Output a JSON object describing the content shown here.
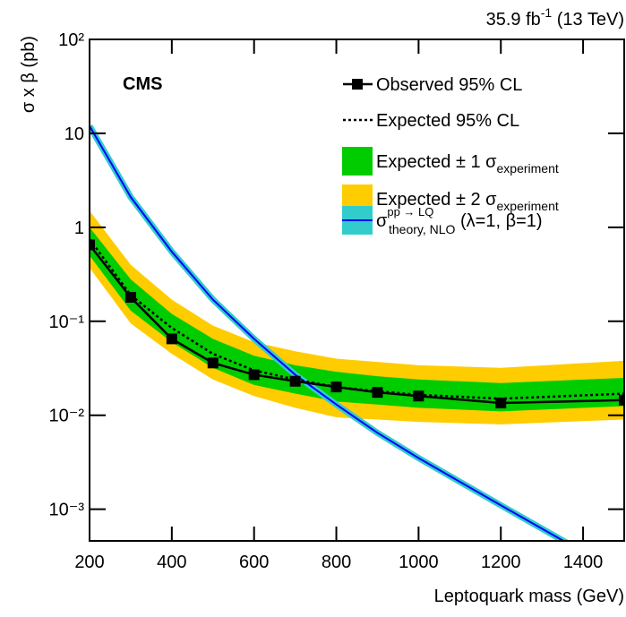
{
  "chart_data": {
    "type": "line",
    "experiment": "CMS",
    "lumi": {
      "text": "35.9 fb",
      "sup": "-1",
      "suffix": " (13 TeV)"
    },
    "x_label": "Leptoquark mass (GeV)",
    "y_label": "σ x β (pb)",
    "log_y": true,
    "xlim": [
      200,
      1500
    ],
    "xticks": [
      200,
      400,
      600,
      800,
      1000,
      1200,
      1400
    ],
    "ylim": [
      0.00046,
      100
    ],
    "yticks": [
      {
        "value": 0.001,
        "label": "10⁻³"
      },
      {
        "value": 0.01,
        "label": "10⁻²"
      },
      {
        "value": 0.1,
        "label": "10⁻¹"
      },
      1,
      10,
      {
        "value": 100,
        "label": "10²"
      }
    ],
    "x": [
      200,
      300,
      400,
      500,
      600,
      700,
      800,
      900,
      1000,
      1200,
      1500
    ],
    "series": [
      {
        "name": "Observed 95% CL",
        "kind": "observed",
        "color": "#000000",
        "values": [
          0.65,
          0.18,
          0.065,
          0.036,
          0.027,
          0.023,
          0.02,
          0.0175,
          0.016,
          0.0135,
          0.0145
        ]
      },
      {
        "name": "Expected 95% CL",
        "kind": "expected",
        "color": "#000000",
        "values": [
          0.75,
          0.19,
          0.085,
          0.045,
          0.03,
          0.024,
          0.02,
          0.018,
          0.0165,
          0.015,
          0.017
        ]
      },
      {
        "name": "Expected ± 1 σ",
        "name_sub": "experiment",
        "kind": "band",
        "color": "#00cc00",
        "values": [
          1.0,
          0.28,
          0.12,
          0.065,
          0.043,
          0.034,
          0.029,
          0.026,
          0.024,
          0.022,
          0.025
        ],
        "lower": [
          0.5,
          0.13,
          0.06,
          0.032,
          0.021,
          0.017,
          0.014,
          0.013,
          0.012,
          0.011,
          0.0125
        ]
      },
      {
        "name": "Expected ± 2 σ",
        "name_sub": "experiment",
        "kind": "band",
        "color": "#ffcc00",
        "values": [
          1.5,
          0.4,
          0.17,
          0.09,
          0.06,
          0.048,
          0.04,
          0.037,
          0.034,
          0.032,
          0.038
        ],
        "lower": [
          0.37,
          0.095,
          0.045,
          0.024,
          0.016,
          0.012,
          0.0095,
          0.009,
          0.0085,
          0.008,
          0.009
        ]
      },
      {
        "name": "σ",
        "name_sup": "pp → LQ",
        "name_sub": "theory, NLO",
        "name_suffix": " (λ=1, β=1)",
        "kind": "theory",
        "color": "#0000ff",
        "band_color": "#33cccc",
        "x": [
          200,
          300,
          400,
          500,
          600,
          700,
          800,
          900,
          1000,
          1200,
          1400
        ],
        "values": [
          12,
          2.1,
          0.55,
          0.17,
          0.065,
          0.027,
          0.013,
          0.0065,
          0.0035,
          0.0011,
          0.00035
        ]
      }
    ]
  }
}
